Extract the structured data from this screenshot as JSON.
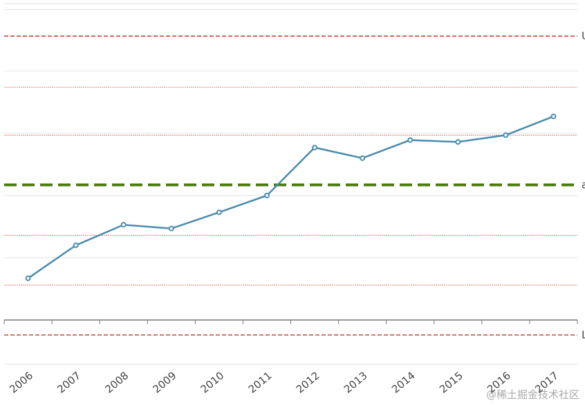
{
  "chart_data": {
    "type": "line",
    "categories": [
      "2006",
      "2007",
      "2008",
      "2009",
      "2010",
      "2011",
      "2012",
      "2013",
      "2014",
      "2015",
      "2016",
      "2017"
    ],
    "values": [
      0.67,
      1.2,
      1.53,
      1.47,
      1.73,
      2.0,
      2.77,
      2.6,
      2.89,
      2.86,
      2.97,
      3.27
    ],
    "color": "#4a8bad",
    "ylim": [
      -0.71,
      5.14
    ],
    "grid_lines": [
      -0.71,
      1,
      2,
      3,
      4,
      4.99,
      5.08
    ],
    "limit_lines": [
      {
        "label": "UCL",
        "value": 4.56,
        "color": "#c0392b"
      },
      {
        "label": "avg",
        "value": 2.17,
        "color": "#4a7c0a"
      },
      {
        "label": "LCL",
        "value": -0.24,
        "color": "#c0392b"
      }
    ],
    "sigma_lines": [
      3.74,
      2.97,
      1.36,
      0.56
    ],
    "sigma_color": "#d9534f",
    "watermark": "@稀土掘金技术社区"
  }
}
